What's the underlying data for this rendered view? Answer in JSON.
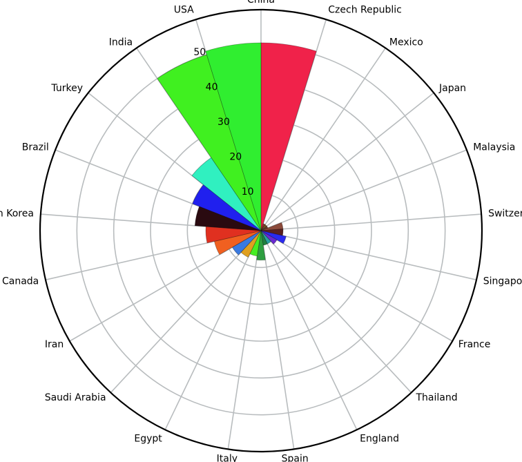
{
  "chart_data": {
    "type": "polar_bar",
    "categories": [
      "China",
      "Czech Republic",
      "Mexico",
      "Japan",
      "Malaysia",
      "Switzerland",
      "Singapore",
      "France",
      "Thailand",
      "England",
      "Spain",
      "Italy",
      "Egypt",
      "Saudi Arabia",
      "Iran",
      "Canada",
      "South Korea",
      "Brazil",
      "Turkey",
      "India",
      "USA"
    ],
    "values": [
      51,
      2,
      2,
      2,
      6,
      6,
      7,
      5,
      4,
      4,
      8,
      7,
      8,
      9,
      13,
      15,
      18,
      20,
      24,
      50,
      51
    ],
    "colors": [
      "#f0224a",
      "#8b3a2a",
      "#7a5a2a",
      "#6a3d2a",
      "#8b4a3a",
      "#5a2020",
      "#2a2af0",
      "#6a2ad0",
      "#2aa0a0",
      "#208040",
      "#2e9e40",
      "#44ee22",
      "#e0a020",
      "#3a7ae0",
      "#f06020",
      "#e03020",
      "#2a0a10",
      "#2020ee",
      "#30f0c0",
      "#40f020",
      "#30ee30"
    ],
    "ylim": [
      0,
      60
    ],
    "yticks": [
      10,
      20,
      30,
      40,
      50
    ],
    "grid": true
  }
}
